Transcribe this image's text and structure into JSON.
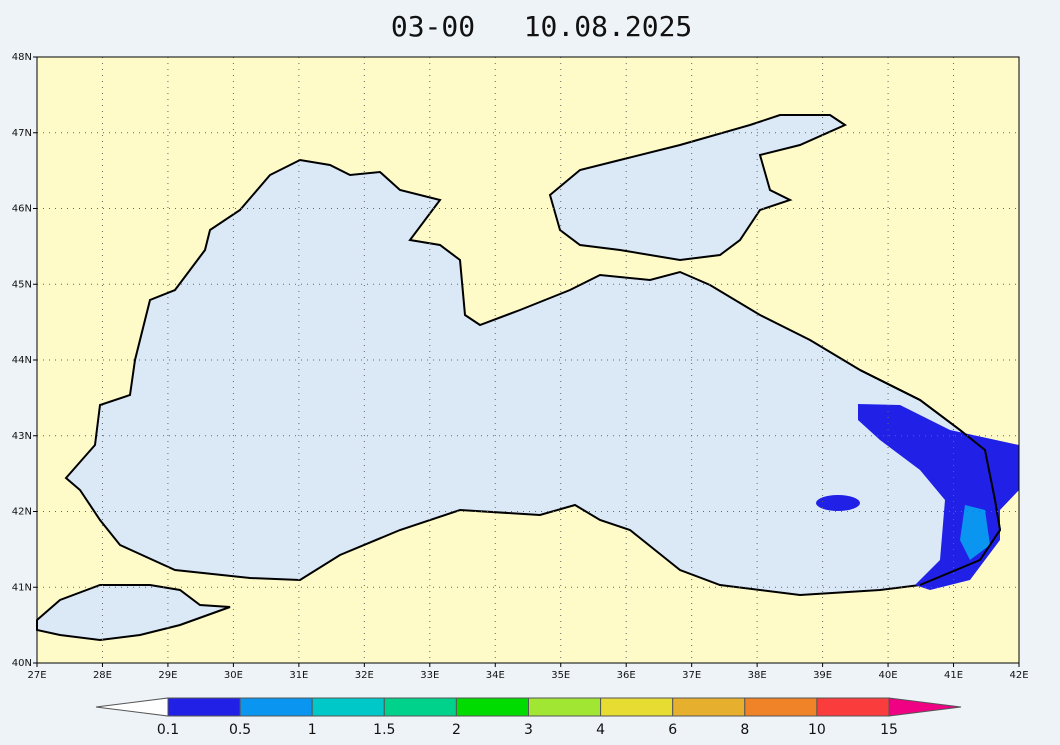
{
  "title": {
    "time": "03-00",
    "date": "10.08.2025"
  },
  "map": {
    "lat_ticks": [
      "40N",
      "41N",
      "42N",
      "43N",
      "44N",
      "45N",
      "46N",
      "47N",
      "48N"
    ],
    "lon_ticks": [
      "27E",
      "28E",
      "29E",
      "30E",
      "31E",
      "32E",
      "33E",
      "34E",
      "35E",
      "36E",
      "37E",
      "38E",
      "39E",
      "40E",
      "41E",
      "42E"
    ]
  },
  "colorbar": {
    "labels": [
      "0.1",
      "0.5",
      "1",
      "1.5",
      "2",
      "3",
      "4",
      "6",
      "8",
      "10",
      "15"
    ],
    "colors": [
      "#ffffff",
      "#2020e6",
      "#0a96f0",
      "#00c8c8",
      "#00d28c",
      "#00dc00",
      "#a0e632",
      "#e6dc32",
      "#e6af2d",
      "#f08228",
      "#fa3c3c",
      "#f00082"
    ]
  }
}
